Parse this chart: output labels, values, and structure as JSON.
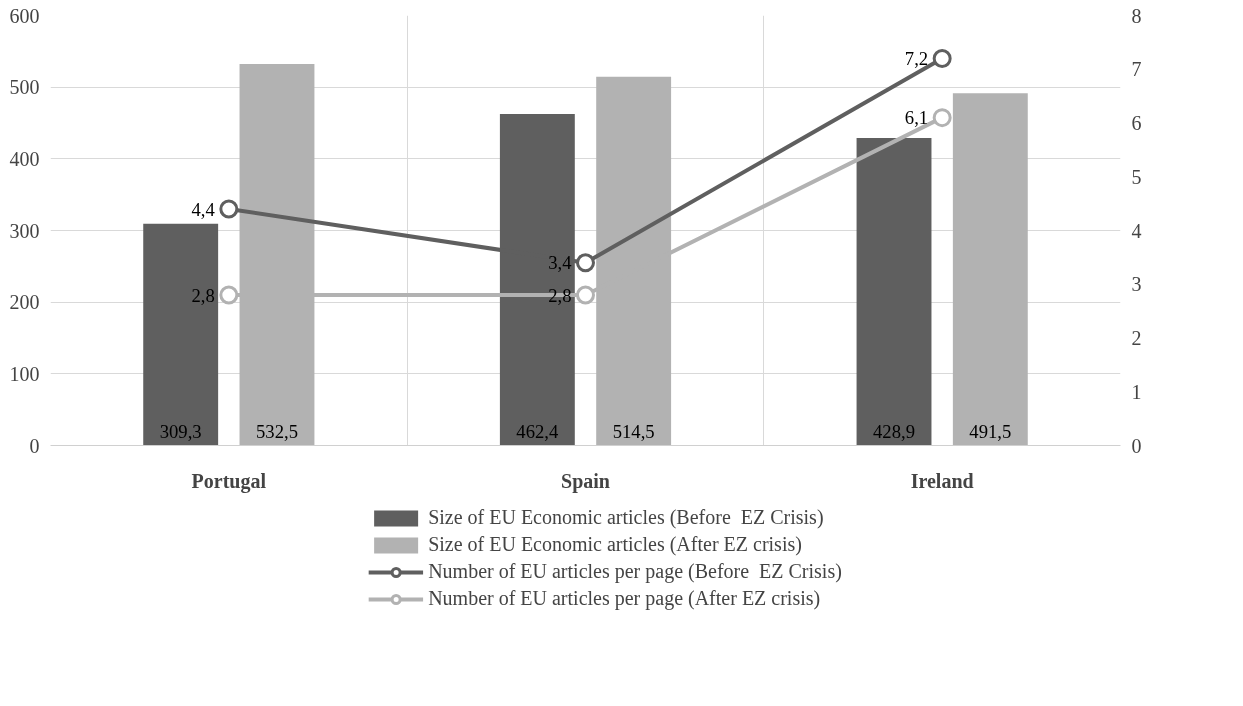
{
  "chart_data": {
    "type": "bar",
    "categories": [
      "Portugal",
      "Spain",
      "Ireland"
    ],
    "series": [
      {
        "name": "Size of EU Economic articles (Before  EZ Crisis)",
        "color": "#5f5f5f",
        "values": [
          309.3,
          462.4,
          428.9
        ],
        "value_labels": [
          "309,3",
          "462,4",
          "428,9"
        ]
      },
      {
        "name": "Size of EU Economic articles (After EZ crisis)",
        "color": "#b2b2b2",
        "values": [
          532.5,
          514.5,
          491.5
        ],
        "value_labels": [
          "532,5",
          "514,5",
          "491,5"
        ]
      },
      {
        "name": "Number of EU articles per page (Before  EZ Crisis)",
        "type": "line",
        "axis": "y2",
        "marker": "circle",
        "color": "#5f5f5f",
        "values": [
          4.4,
          3.4,
          7.2
        ],
        "value_labels": [
          "4,4",
          "3,4",
          "7,2"
        ]
      },
      {
        "name": "Number of EU articles per page (After EZ crisis)",
        "type": "line",
        "axis": "y2",
        "marker": "circle",
        "color": "#b2b2b2",
        "values": [
          2.8,
          2.8,
          6.1
        ],
        "value_labels": [
          "2,8",
          "2,8",
          "6,1"
        ]
      }
    ],
    "ylim": [
      0,
      600
    ],
    "yticks": [
      0,
      100,
      200,
      300,
      400,
      500,
      600
    ],
    "y2lim": [
      0,
      8
    ],
    "y2ticks": [
      0,
      1,
      2,
      3,
      4,
      5,
      6,
      7,
      8
    ],
    "grid": true,
    "legend": "bottom",
    "line_style": "solid"
  }
}
